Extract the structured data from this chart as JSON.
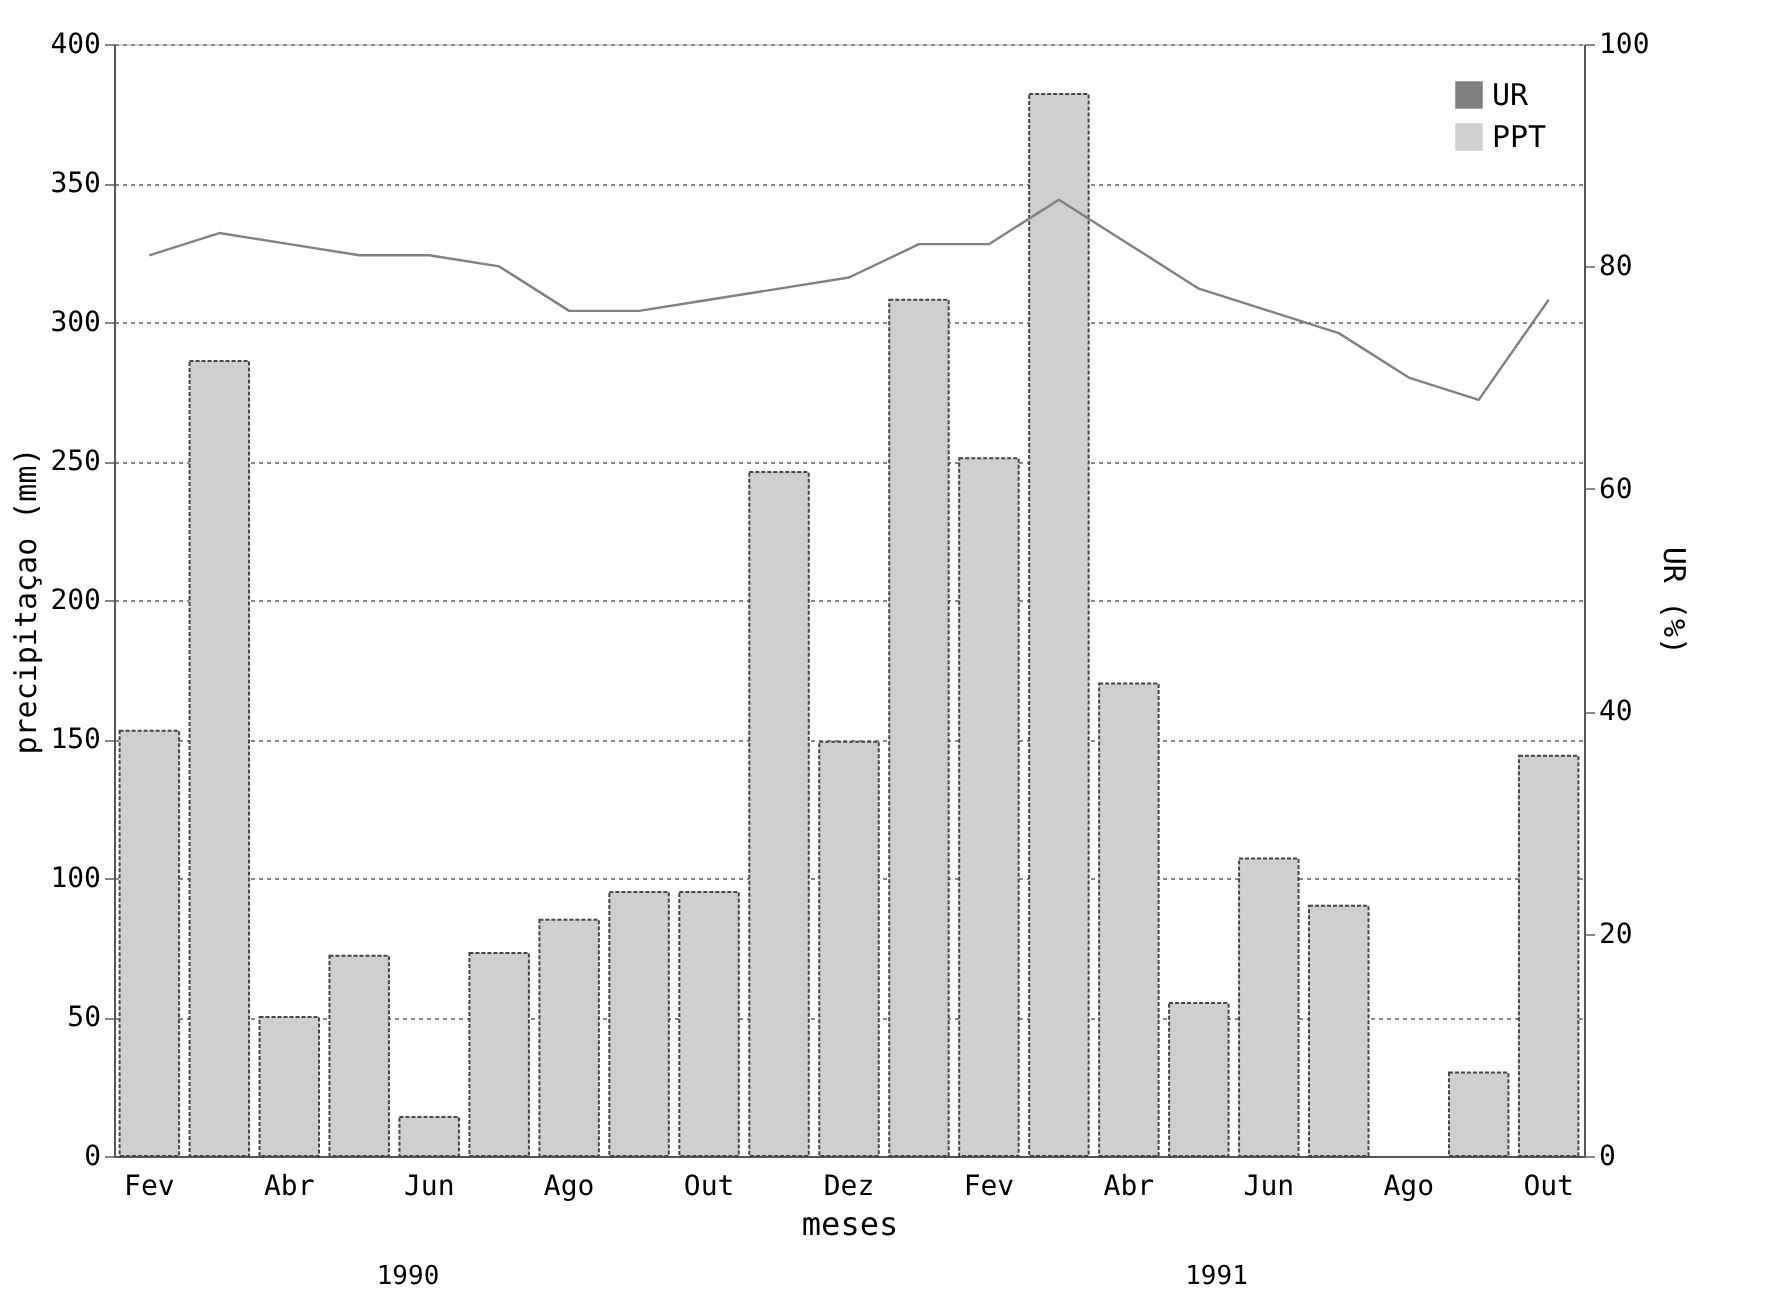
{
  "chart_data": {
    "type": "bar",
    "xlabel": "meses",
    "ylabel": "precipitaçao (mm)",
    "y2label": "UR (%)",
    "categories": [
      "Fev",
      null,
      "Abr",
      null,
      "Jun",
      null,
      "Ago",
      null,
      "Out",
      null,
      "Dez",
      null,
      "Fev",
      null,
      "Abr",
      null,
      "Jun",
      null,
      "Ago",
      null,
      "Out"
    ],
    "series": [
      {
        "name": "UR",
        "type": "line",
        "axis": "y2",
        "color": "#808080",
        "values": [
          81,
          83,
          82,
          81,
          81,
          80,
          76,
          76,
          77,
          78,
          79,
          82,
          82,
          86,
          82,
          78,
          76,
          74,
          70,
          68,
          77
        ]
      },
      {
        "name": "PPT",
        "color": "#cfcfcf",
        "values": [
          153,
          286,
          50,
          72,
          14,
          73,
          85,
          95,
          95,
          246,
          149,
          308,
          251,
          382,
          170,
          55,
          107,
          90,
          null,
          30,
          144
        ]
      }
    ],
    "ylim": [
      0,
      400
    ],
    "yticks": [
      0,
      50,
      100,
      150,
      200,
      250,
      300,
      350,
      400
    ],
    "y2lim": [
      0,
      100
    ],
    "y2ticks": [
      0,
      20,
      40,
      60,
      80,
      100
    ],
    "grid": "y",
    "legend": "top right",
    "annotations": [
      "1990",
      "1991"
    ]
  }
}
